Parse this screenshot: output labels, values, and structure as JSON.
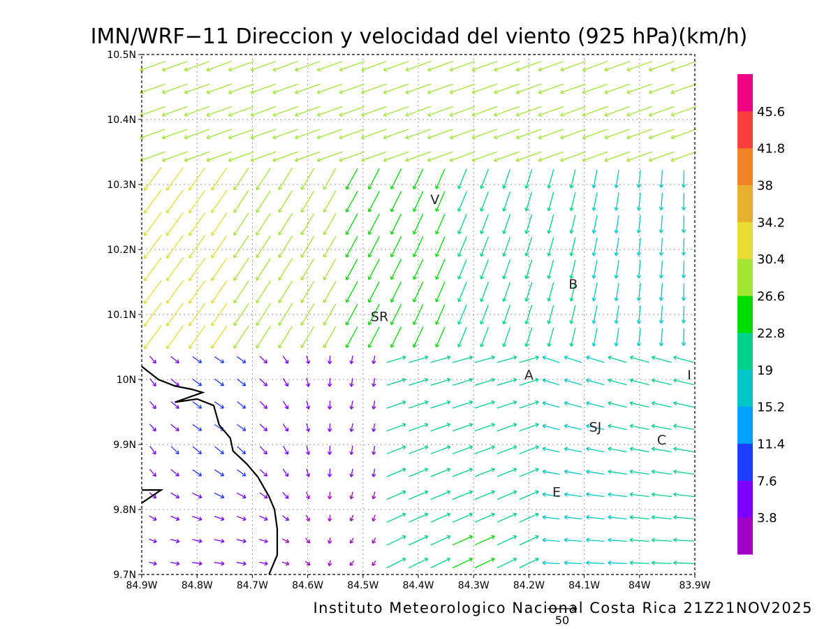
{
  "title": "IMN/WRF−11 Direccion y velocidad del viento (925 hPa)(km/h)",
  "credit": "Instituto Meteorologico Nacional Costa Rica 21Z21NOV2025",
  "reference_vector": {
    "label": "50",
    "speed": 50
  },
  "map": {
    "lon_range": [
      -84.9,
      -83.9
    ],
    "lat_range": [
      9.7,
      10.5
    ],
    "x_ticks": [
      "84.9W",
      "84.8W",
      "84.7W",
      "84.6W",
      "84.5W",
      "84.4W",
      "84.3W",
      "84.2W",
      "84.1W",
      "84W",
      "83.9W"
    ],
    "y_ticks": [
      "9.7N",
      "9.8N",
      "9.9N",
      "10N",
      "10.1N",
      "10.2N",
      "10.3N",
      "10.4N",
      "10.5N"
    ],
    "gridlines": "dotted",
    "places": [
      {
        "code": "V",
        "lon": -84.37,
        "lat": 10.27
      },
      {
        "code": "SR",
        "lon": -84.47,
        "lat": 10.09
      },
      {
        "code": "B",
        "lon": -84.12,
        "lat": 10.14
      },
      {
        "code": "A",
        "lon": -84.2,
        "lat": 10.0
      },
      {
        "code": "I",
        "lon": -83.91,
        "lat": 10.0
      },
      {
        "code": "SJ",
        "lon": -84.08,
        "lat": 9.92
      },
      {
        "code": "C",
        "lon": -83.96,
        "lat": 9.9
      },
      {
        "code": "E",
        "lon": -84.15,
        "lat": 9.82
      }
    ],
    "coastline": [
      [
        -84.9,
        10.02
      ],
      [
        -84.87,
        10.0
      ],
      [
        -84.84,
        9.99
      ],
      [
        -84.81,
        9.985
      ],
      [
        -84.79,
        9.98
      ],
      [
        -84.84,
        9.965
      ],
      [
        -84.8,
        9.97
      ],
      [
        -84.77,
        9.96
      ],
      [
        -84.76,
        9.93
      ],
      [
        -84.74,
        9.91
      ],
      [
        -84.735,
        9.89
      ],
      [
        -84.71,
        9.87
      ],
      [
        -84.69,
        9.85
      ],
      [
        -84.67,
        9.82
      ],
      [
        -84.66,
        9.8
      ],
      [
        -84.655,
        9.77
      ],
      [
        -84.655,
        9.73
      ],
      [
        -84.67,
        9.7
      ]
    ],
    "peninsula": [
      [
        -84.9,
        9.83
      ],
      [
        -84.865,
        9.83
      ],
      [
        -84.9,
        9.81
      ]
    ]
  },
  "colorbar": {
    "colors": [
      "#a000c8",
      "#7f00ff",
      "#1e3cff",
      "#00a0ff",
      "#00c8c8",
      "#00d28c",
      "#00dc00",
      "#a0e632",
      "#e6dc32",
      "#e6af2d",
      "#f08228",
      "#fa3c3c",
      "#f00082"
    ],
    "labels": [
      "3.8",
      "7.6",
      "11.4",
      "15.2",
      "19",
      "22.8",
      "26.6",
      "30.4",
      "34.2",
      "38",
      "41.8",
      "45.6"
    ]
  }
}
